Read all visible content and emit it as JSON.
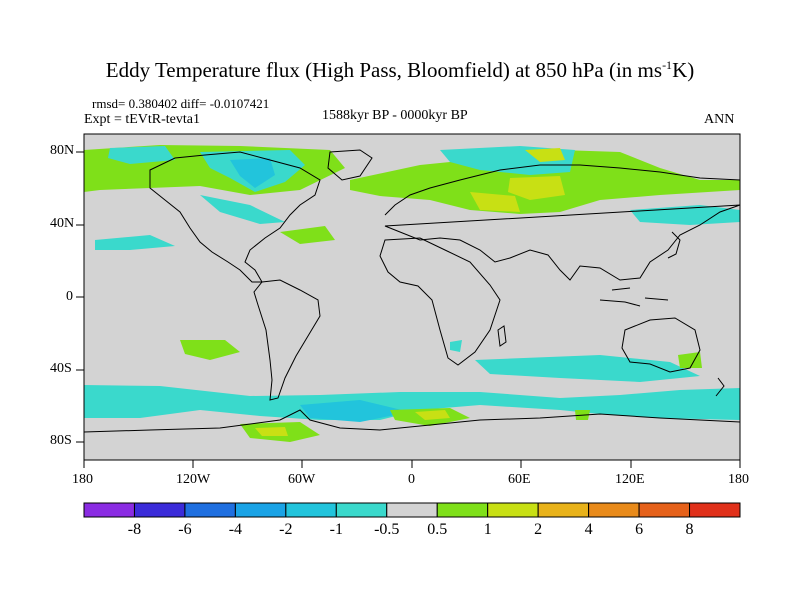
{
  "title": "Eddy Temperature flux (High Pass, Bloomfield) at 850 hPa (in ms",
  "title_sup": "-1",
  "title_end": "K)",
  "stats": "rmsd= 0.380402 diff= -0.0107421",
  "expt": "Expt = tEVtR-tevta1",
  "period": "1588kyr BP - 0000kyr BP",
  "season": "ANN",
  "lat_labels": [
    "80N",
    "40N",
    "0",
    "40S",
    "80S"
  ],
  "lon_labels": [
    "180",
    "120W",
    "60W",
    "0",
    "60E",
    "120E",
    "180"
  ],
  "colorbar": {
    "labels": [
      "-8",
      "-6",
      "-4",
      "-2",
      "-1",
      "-0.5",
      "0.5",
      "1",
      "2",
      "4",
      "6",
      "8"
    ],
    "colors": [
      "#8a2be2",
      "#3b2bd9",
      "#1f6fe0",
      "#1aa3e6",
      "#22c4dc",
      "#3ad9cc",
      "#d3d3d3",
      "#7fe019",
      "#c8e014",
      "#e8b21a",
      "#e88a1a",
      "#e5611a",
      "#e0301a"
    ]
  },
  "colors": {
    "land_background": "#d3d3d3",
    "coastline": "#000000"
  }
}
